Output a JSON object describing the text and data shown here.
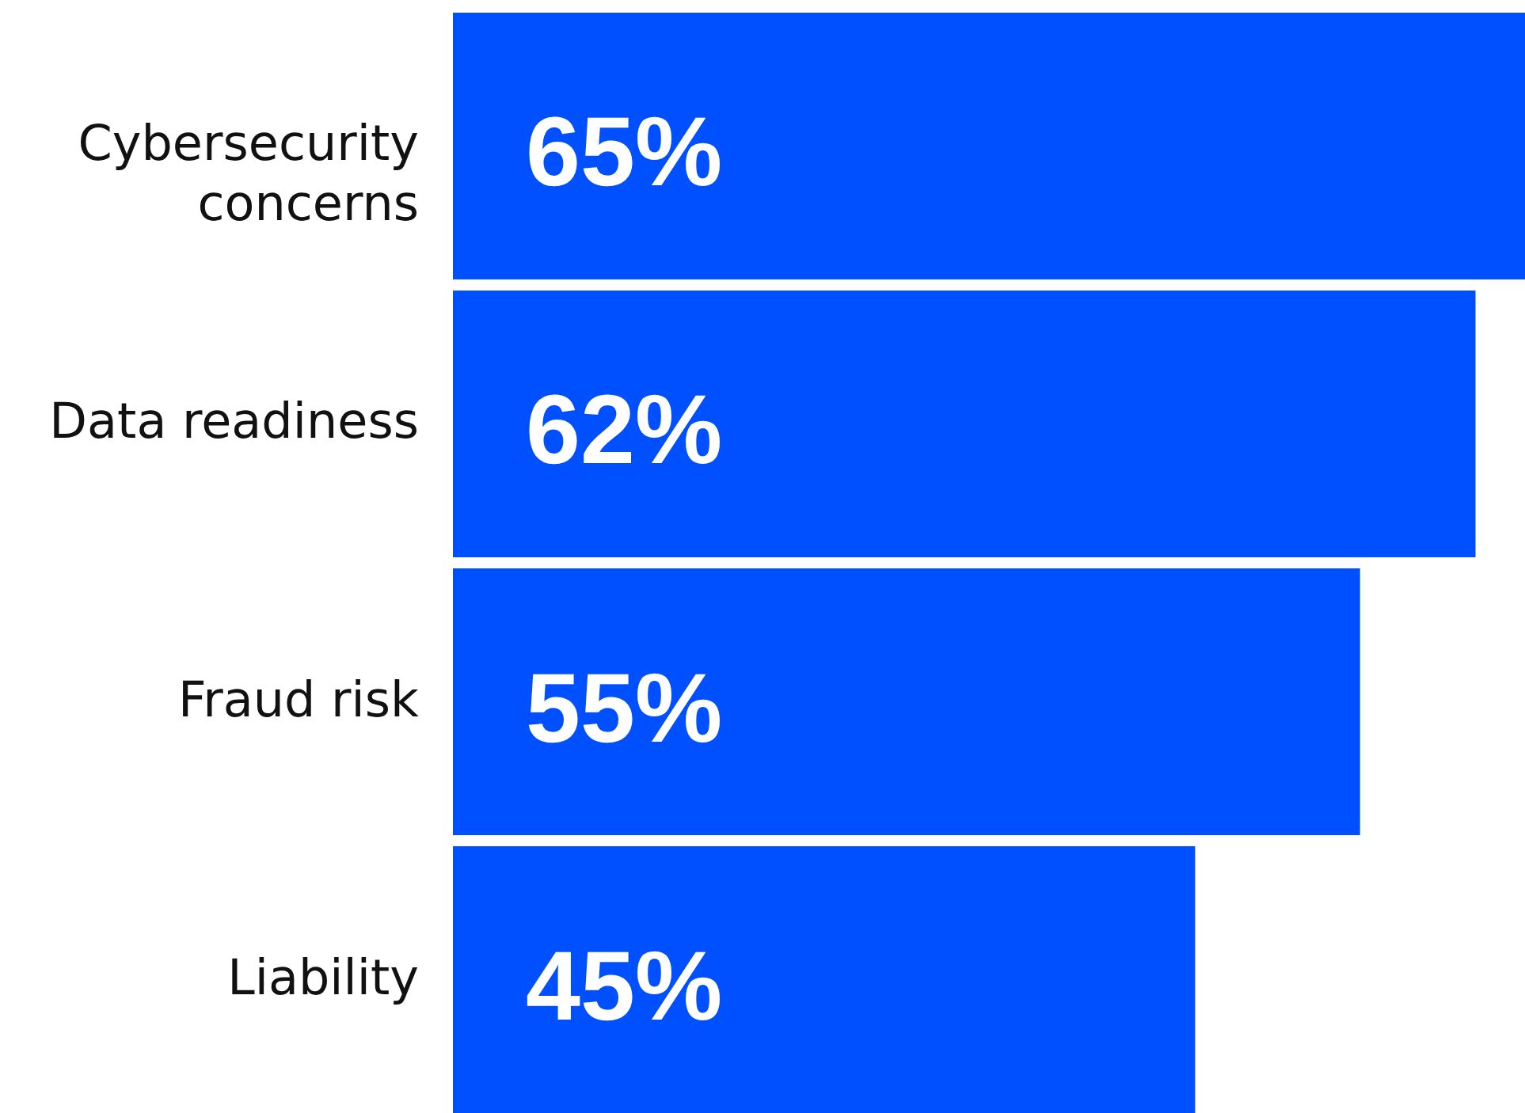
{
  "chart_data": {
    "type": "bar",
    "orientation": "horizontal",
    "categories": [
      "Cybersecurity concerns",
      "Data readiness",
      "Fraud risk",
      "Liability"
    ],
    "values": [
      65,
      62,
      55,
      45
    ],
    "value_labels": [
      "65%",
      "62%",
      "55%",
      "45%"
    ],
    "color": "#0050ff"
  }
}
